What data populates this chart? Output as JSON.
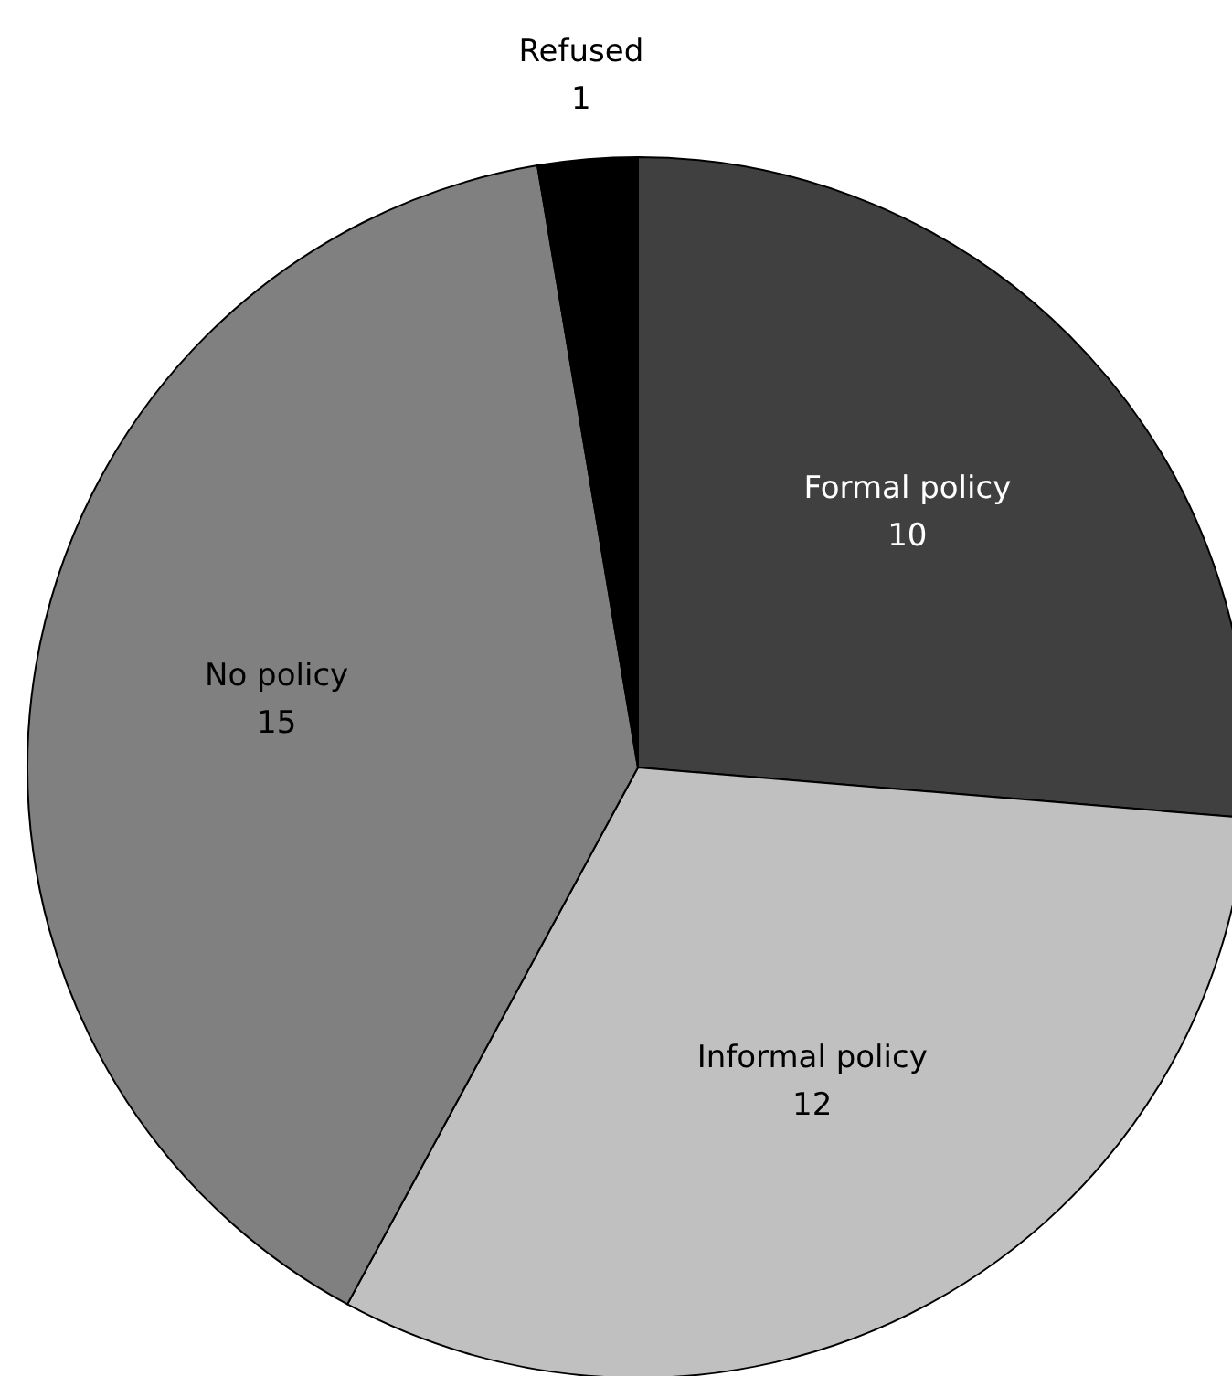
{
  "chart_data": {
    "type": "pie",
    "categories": [
      "Formal policy",
      "Informal policy",
      "No policy",
      "Refused"
    ],
    "values": [
      10,
      12,
      15,
      1
    ],
    "colors": [
      "#404040",
      "#c0c0c0",
      "#808080",
      "#000000"
    ],
    "data_labels": true
  }
}
